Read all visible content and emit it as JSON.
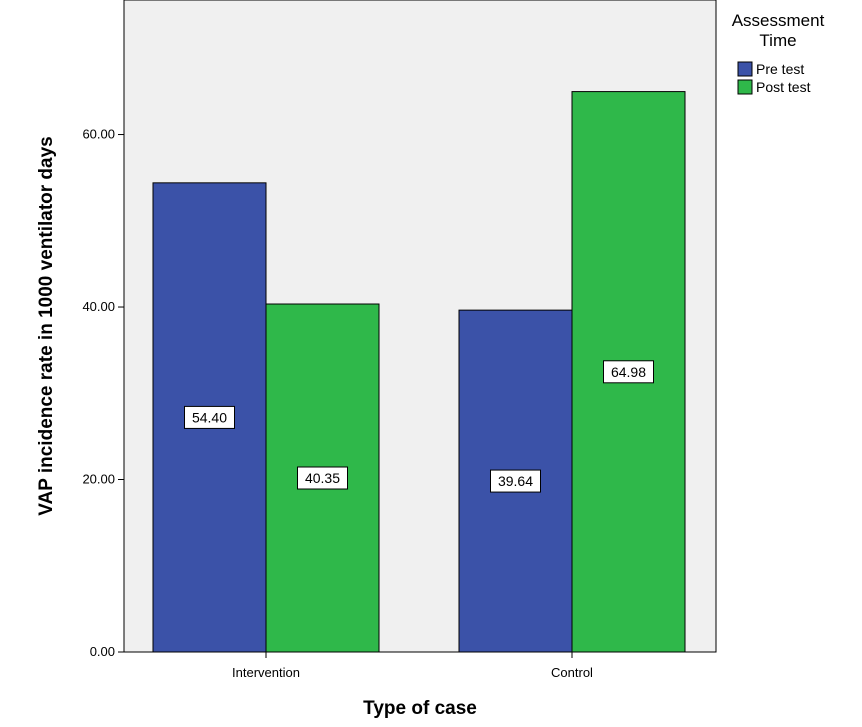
{
  "chart_data": {
    "type": "bar",
    "title": "",
    "xlabel": "Type of case",
    "ylabel": "VAP incidence rate in 1000 ventilator days",
    "categories": [
      "Intervention",
      "Control"
    ],
    "series": [
      {
        "name": "Pre test",
        "values": [
          54.4,
          39.64
        ],
        "labels": [
          "54.40",
          "39.64"
        ],
        "color": "#3b52a8"
      },
      {
        "name": "Post test",
        "values": [
          40.35,
          64.98
        ],
        "labels": [
          "40.35",
          "64.98"
        ],
        "color": "#2fb84a"
      }
    ],
    "ylim": [
      0,
      75.6
    ],
    "yticks": [
      "0.00",
      "20.00",
      "40.00",
      "60.00"
    ],
    "ytick_values": [
      0,
      20,
      40,
      60
    ],
    "legend": {
      "title_lines": [
        "Assessment",
        "Time"
      ],
      "placement": "right"
    },
    "grid": false,
    "plot_background": "#f0f0f0"
  }
}
